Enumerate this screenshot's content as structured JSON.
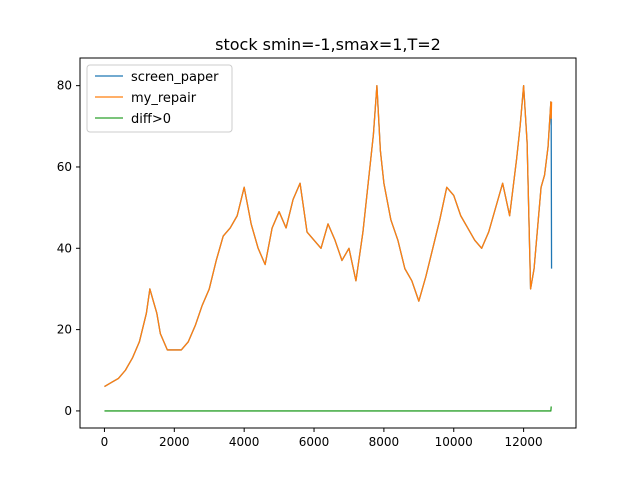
{
  "chart_data": {
    "type": "line",
    "title": "stock smin=-1,smax=1,T=2",
    "xlabel": "",
    "ylabel": "",
    "xlim": [
      -700,
      13500
    ],
    "ylim": [
      -4.2,
      86.8
    ],
    "xticks": [
      0,
      2000,
      4000,
      6000,
      8000,
      10000,
      12000
    ],
    "xtick_labels": [
      "0",
      "2000",
      "4000",
      "6000",
      "8000",
      "10000",
      "12000"
    ],
    "yticks": [
      0,
      20,
      40,
      60,
      80
    ],
    "ytick_labels": [
      "0",
      "20",
      "40",
      "60",
      "80"
    ],
    "grid": false,
    "legend_position": "top-left",
    "legend": [
      "screen_paper",
      "my_repair",
      "diff>0"
    ],
    "colors": {
      "screen_paper": "#1f77b4",
      "my_repair": "#ff7f0e",
      "diff>0": "#2ca02c"
    },
    "series": [
      {
        "name": "screen_paper",
        "x": [
          0,
          200,
          400,
          600,
          800,
          1000,
          1200,
          1300,
          1400,
          1500,
          1600,
          1800,
          2000,
          2200,
          2400,
          2600,
          2800,
          3000,
          3200,
          3400,
          3600,
          3800,
          4000,
          4200,
          4400,
          4600,
          4800,
          5000,
          5200,
          5400,
          5600,
          5800,
          6000,
          6200,
          6400,
          6600,
          6800,
          7000,
          7200,
          7400,
          7600,
          7700,
          7800,
          7900,
          8000,
          8200,
          8400,
          8600,
          8800,
          9000,
          9200,
          9400,
          9600,
          9800,
          10000,
          10200,
          10400,
          10600,
          10800,
          11000,
          11200,
          11400,
          11600,
          11800,
          11900,
          12000,
          12100,
          12200,
          12300,
          12400,
          12500,
          12600,
          12700,
          12780,
          12790,
          12800
        ],
        "values": [
          6,
          7,
          8,
          10,
          13,
          17,
          24,
          30,
          27,
          24,
          19,
          15,
          15,
          15,
          17,
          21,
          26,
          30,
          37,
          43,
          45,
          48,
          55,
          46,
          40,
          36,
          45,
          49,
          45,
          52,
          56,
          44,
          42,
          40,
          46,
          42,
          37,
          40,
          32,
          44,
          60,
          68,
          80,
          64,
          56,
          47,
          42,
          35,
          32,
          27,
          33,
          40,
          47,
          55,
          53,
          48,
          45,
          42,
          40,
          44,
          50,
          56,
          48,
          62,
          70,
          80,
          66,
          30,
          35,
          45,
          55,
          58,
          65,
          76,
          72,
          35
        ]
      },
      {
        "name": "my_repair",
        "x": [
          0,
          200,
          400,
          600,
          800,
          1000,
          1200,
          1300,
          1400,
          1500,
          1600,
          1800,
          2000,
          2200,
          2400,
          2600,
          2800,
          3000,
          3200,
          3400,
          3600,
          3800,
          4000,
          4200,
          4400,
          4600,
          4800,
          5000,
          5200,
          5400,
          5600,
          5800,
          6000,
          6200,
          6400,
          6600,
          6800,
          7000,
          7200,
          7400,
          7600,
          7700,
          7800,
          7900,
          8000,
          8200,
          8400,
          8600,
          8800,
          9000,
          9200,
          9400,
          9600,
          9800,
          10000,
          10200,
          10400,
          10600,
          10800,
          11000,
          11200,
          11400,
          11600,
          11800,
          11900,
          12000,
          12100,
          12200,
          12300,
          12400,
          12500,
          12600,
          12700,
          12780,
          12790,
          12800
        ],
        "values": [
          6,
          7,
          8,
          10,
          13,
          17,
          24,
          30,
          27,
          24,
          19,
          15,
          15,
          15,
          17,
          21,
          26,
          30,
          37,
          43,
          45,
          48,
          55,
          46,
          40,
          36,
          45,
          49,
          45,
          52,
          56,
          44,
          42,
          40,
          46,
          42,
          37,
          40,
          32,
          44,
          60,
          68,
          80,
          64,
          56,
          47,
          42,
          35,
          32,
          27,
          33,
          40,
          47,
          55,
          53,
          48,
          45,
          42,
          40,
          44,
          50,
          56,
          48,
          62,
          70,
          80,
          66,
          30,
          35,
          45,
          55,
          58,
          65,
          76,
          72,
          76
        ]
      },
      {
        "name": "diff>0",
        "x": [
          0,
          12780,
          12790,
          12800
        ],
        "values": [
          0,
          0,
          1,
          1
        ]
      }
    ]
  }
}
